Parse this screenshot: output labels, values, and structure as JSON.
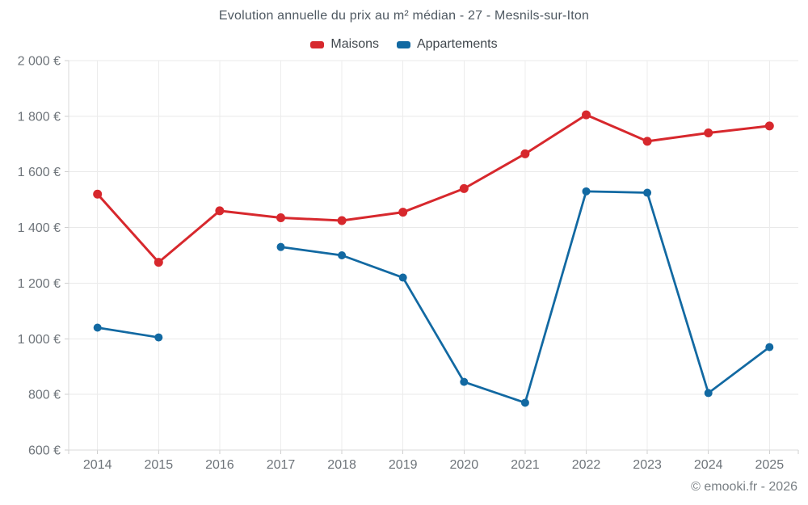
{
  "page": {
    "background": "#ffffff"
  },
  "chart_data": {
    "type": "line",
    "title": "Evolution annuelle du prix au m² médian - 27 - Mesnils-sur-Iton",
    "categories": [
      "2014",
      "2015",
      "2016",
      "2017",
      "2018",
      "2019",
      "2020",
      "2021",
      "2022",
      "2023",
      "2024",
      "2025"
    ],
    "series": [
      {
        "name": "Maisons",
        "color": "#d7282d",
        "values": [
          1520,
          1275,
          1460,
          1435,
          1425,
          1455,
          1540,
          1665,
          1805,
          1710,
          1740,
          1765
        ]
      },
      {
        "name": "Appartements",
        "color": "#1269a2",
        "values": [
          1040,
          1005,
          null,
          1330,
          1300,
          1220,
          845,
          770,
          1530,
          1525,
          805,
          970
        ]
      }
    ],
    "xlabel": "",
    "ylabel": "",
    "ylim": [
      600,
      2000
    ],
    "y_ticks": [
      600,
      800,
      1000,
      1200,
      1400,
      1600,
      1800,
      2000
    ],
    "y_tick_labels": [
      "600 €",
      "800 €",
      "1 000 €",
      "1 200 €",
      "1 400 €",
      "1 600 €",
      "1 800 €",
      "2 000 €"
    ],
    "grid": true,
    "legend_position": "top"
  },
  "legend": {
    "items": [
      {
        "label": "Maisons",
        "color": "#d7282d"
      },
      {
        "label": "Appartements",
        "color": "#1269a2"
      }
    ]
  },
  "footer": {
    "text": "© emooki.fr - 2026"
  }
}
